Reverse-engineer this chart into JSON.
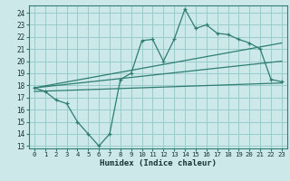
{
  "xlabel": "Humidex (Indice chaleur)",
  "bg_color": "#cce8e8",
  "grid_color": "#99cccc",
  "line_color": "#2e7d72",
  "xlim": [
    -0.5,
    23.5
  ],
  "ylim": [
    12.8,
    24.6
  ],
  "yticks": [
    13,
    14,
    15,
    16,
    17,
    18,
    19,
    20,
    21,
    22,
    23,
    24
  ],
  "xticks": [
    0,
    1,
    2,
    3,
    4,
    5,
    6,
    7,
    8,
    9,
    10,
    11,
    12,
    13,
    14,
    15,
    16,
    17,
    18,
    19,
    20,
    21,
    22,
    23
  ],
  "line1_x": [
    0,
    1,
    2,
    3,
    4,
    5,
    6,
    7,
    8,
    9,
    10,
    11,
    12,
    13,
    14,
    15,
    16,
    17,
    18,
    19,
    20,
    21,
    22,
    23
  ],
  "line1_y": [
    17.8,
    17.5,
    16.8,
    16.5,
    15.0,
    14.0,
    13.0,
    14.0,
    18.5,
    19.0,
    21.7,
    21.8,
    20.0,
    21.8,
    24.3,
    22.7,
    23.0,
    22.3,
    22.2,
    21.8,
    21.5,
    21.0,
    18.5,
    18.3
  ],
  "line2_x": [
    0,
    23
  ],
  "line2_y": [
    17.8,
    21.5
  ],
  "line3_x": [
    0,
    23
  ],
  "line3_y": [
    17.8,
    20.0
  ],
  "line4_x": [
    0,
    23
  ],
  "line4_y": [
    17.5,
    18.2
  ]
}
